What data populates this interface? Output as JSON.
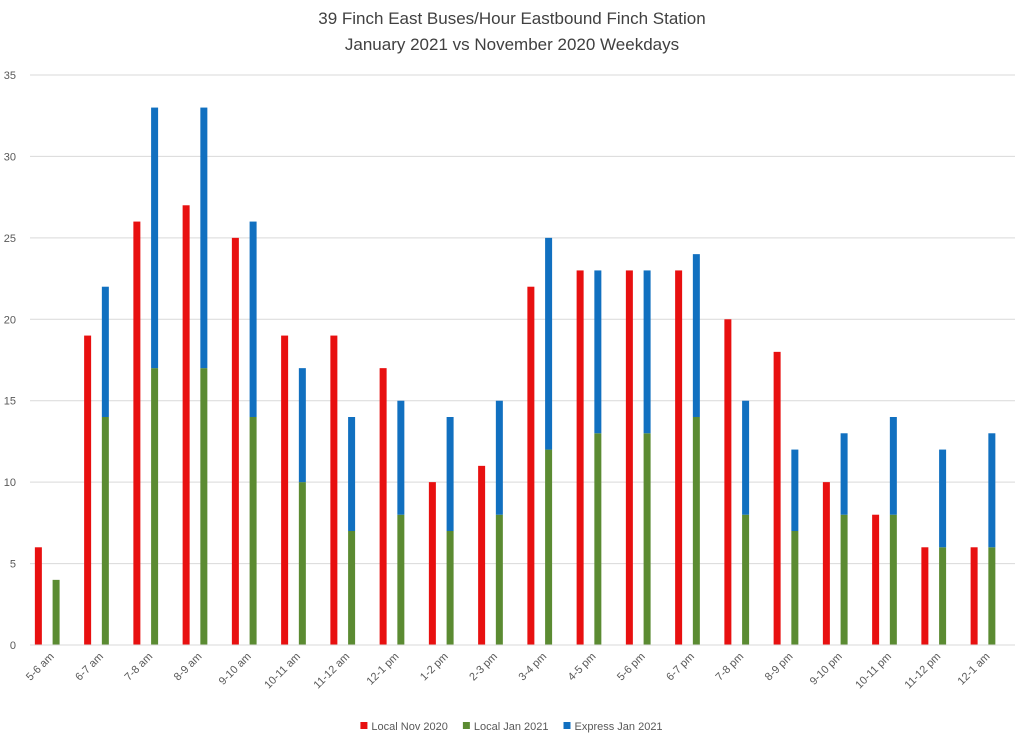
{
  "chart_data": {
    "type": "bar",
    "title": "39 Finch East Buses/Hour Eastbound Finch Station",
    "subtitle": "January 2021 vs November 2020 Weekdays",
    "categories": [
      "5-6 am",
      "6-7 am",
      "7-8 am",
      "8-9 am",
      "9-10 am",
      "10-11 am",
      "11-12 am",
      "12-1 pm",
      "1-2 pm",
      "2-3 pm",
      "3-4 pm",
      "4-5 pm",
      "5-6 pm",
      "6-7 pm",
      "7-8 pm",
      "8-9 pm",
      "9-10 pm",
      "10-11 pm",
      "11-12 pm",
      "12-1 am"
    ],
    "series": [
      {
        "name": "Local Nov 2020",
        "color": "#e81010",
        "values": [
          6,
          19,
          26,
          27,
          25,
          19,
          19,
          17,
          10,
          11,
          22,
          23,
          23,
          23,
          20,
          18,
          10,
          8,
          6,
          6
        ]
      },
      {
        "name": "Local Jan 2021",
        "color": "#5b8b32",
        "stack": true,
        "values": [
          4,
          14,
          17,
          17,
          14,
          10,
          7,
          8,
          7,
          8,
          12,
          13,
          13,
          14,
          8,
          7,
          8,
          8,
          6,
          6
        ]
      },
      {
        "name": "Express Jan 2021",
        "color": "#1170c0",
        "stack": true,
        "values": [
          0,
          8,
          16,
          16,
          12,
          7,
          7,
          7,
          7,
          7,
          13,
          10,
          10,
          10,
          7,
          5,
          5,
          6,
          6,
          7
        ]
      }
    ],
    "ylim": [
      0,
      35
    ],
    "yticks": [
      0,
      5,
      10,
      15,
      20,
      25,
      30,
      35
    ],
    "grid": true,
    "legend": "bottom"
  }
}
